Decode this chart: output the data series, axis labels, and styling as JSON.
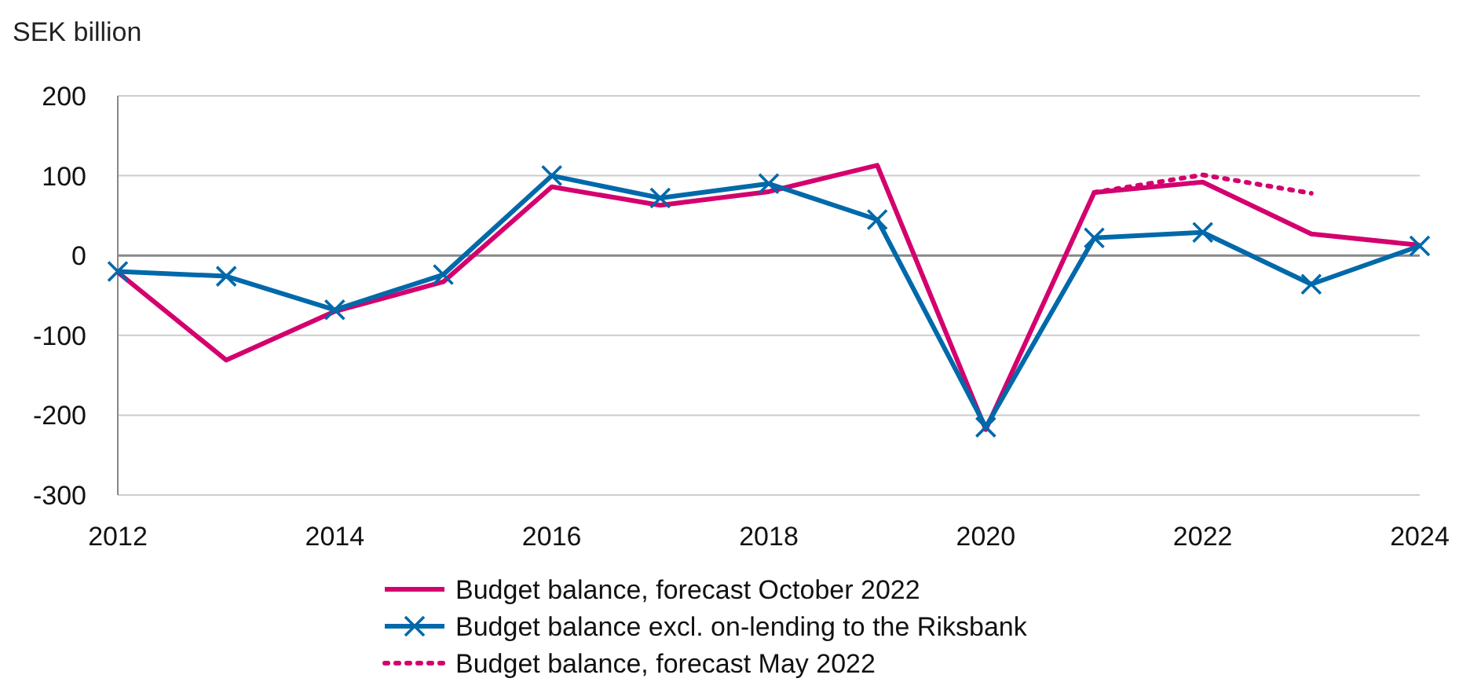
{
  "chart_data": {
    "type": "line",
    "ylabel": "SEK billion",
    "x": [
      2012,
      2013,
      2014,
      2015,
      2016,
      2017,
      2018,
      2019,
      2020,
      2021,
      2022,
      2023,
      2024
    ],
    "xlim": [
      2012,
      2024
    ],
    "xticks": [
      2012,
      2014,
      2016,
      2018,
      2020,
      2022,
      2024
    ],
    "ylim": [
      -300,
      200
    ],
    "yticks": [
      -300,
      -200,
      -100,
      0,
      100,
      200
    ],
    "grid": "y",
    "legend": "bottom",
    "series": [
      {
        "name": "Budget balance, forecast October 2022",
        "color": "#d3006e",
        "values": [
          -21,
          -131,
          -70,
          -33,
          86,
          63,
          80,
          113,
          -218,
          79,
          92,
          27,
          13
        ]
      },
      {
        "name": "Budget balance excl. on-lending to the Riksbank",
        "color": "#0069aa",
        "marker": "cross",
        "values": [
          -20,
          -26,
          -68,
          -24,
          100,
          72,
          90,
          45,
          -215,
          22,
          29,
          -36,
          12
        ]
      },
      {
        "name": "Budget balance, forecast May 2022",
        "color": "#d3006e",
        "line_style": "dotted",
        "x": [
          2021,
          2022,
          2023
        ],
        "values": [
          79,
          101,
          78
        ]
      }
    ]
  }
}
